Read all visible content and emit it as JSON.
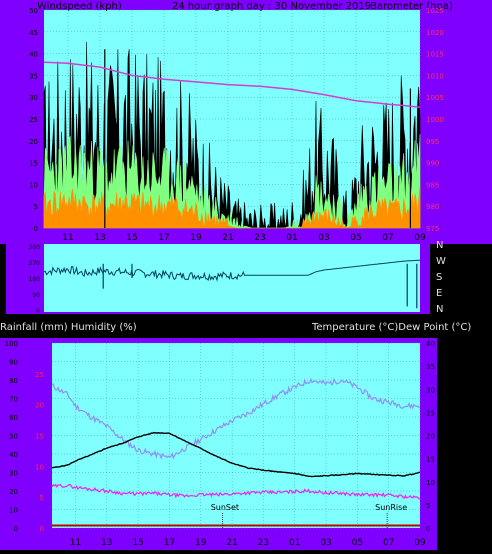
{
  "header": {
    "left": "Windspeed (kph)",
    "center": "24 hour graph day : 30 November 2019",
    "right": "Barometer (hpa)"
  },
  "lower_header": {
    "left": "Rainfall (mm)  Humidity (%)",
    "right": "Temperature (°C)Dew Point (°C)"
  },
  "colors": {
    "plot_bg": "#80FFFF",
    "frame": "#8000FF",
    "grid": "#40A0A0",
    "wind_gust": "#000000",
    "wind_avg": "#80FF80",
    "wind_low": "#FF9000",
    "barometer": "#D040D0",
    "direction": "#004060",
    "humidity": "#9090F0",
    "temperature": "#000000",
    "dewpoint": "#F020F0",
    "rain": "#C00000"
  },
  "chart_data": [
    {
      "type": "area",
      "x_ticks": [
        "11",
        "13",
        "15",
        "17",
        "19",
        "21",
        "23",
        "01",
        "03",
        "05",
        "07",
        "09"
      ],
      "y_left": {
        "ticks": [
          0,
          5,
          10,
          15,
          20,
          25,
          30,
          35,
          40,
          45,
          50
        ],
        "ylim": [
          0,
          50
        ]
      },
      "y_right": {
        "ticks": [
          975,
          980,
          985,
          990,
          995,
          1000,
          1005,
          1010,
          1015,
          1020,
          1025
        ],
        "ylim": [
          975,
          1025
        ]
      },
      "grid": true,
      "series": [
        {
          "key": "gust",
          "x": [
            9.5,
            10.5,
            11.5,
            12.5,
            13.5,
            14.5,
            15.5,
            16.5,
            17.5,
            18.5,
            19.5,
            20.5,
            21.5,
            22.5,
            23.5,
            24.5,
            25.5,
            26.5,
            27.5,
            28.5,
            29.5,
            30.5,
            31.5,
            32.5,
            33
          ],
          "values": [
            18,
            22,
            24,
            22,
            21,
            23,
            22,
            21,
            20,
            17,
            11,
            6,
            2,
            1,
            1,
            1,
            3,
            15,
            12,
            2,
            14,
            16,
            18,
            23,
            28
          ]
        },
        {
          "key": "avg",
          "x": [
            9.5,
            10.5,
            11.5,
            12.5,
            13.5,
            14.5,
            15.5,
            16.5,
            17.5,
            18.5,
            19.5,
            20.5,
            21.5,
            22.5,
            23.5,
            24.5,
            25.5,
            26.5,
            27.5,
            28.5,
            29.5,
            30.5,
            31.5,
            32.5,
            33
          ],
          "values": [
            12,
            13,
            14,
            13,
            12,
            13,
            12,
            12,
            11,
            10,
            6,
            3,
            1,
            0,
            0,
            0,
            1,
            8,
            6,
            1,
            8,
            9,
            10,
            12,
            15
          ]
        },
        {
          "key": "low",
          "x": [
            9.5,
            10.5,
            11.5,
            12.5,
            13.5,
            14.5,
            15.5,
            16.5,
            17.5,
            18.5,
            19.5,
            20.5,
            21.5,
            22.5,
            23.5,
            24.5,
            25.5,
            26.5,
            27.5,
            28.5,
            29.5,
            30.5,
            31.5,
            32.5,
            33
          ],
          "values": [
            5,
            6,
            6,
            5,
            5,
            6,
            5,
            5,
            5,
            4,
            3,
            1,
            0,
            0,
            0,
            0,
            0,
            3,
            2,
            0,
            3,
            4,
            4,
            5,
            6
          ]
        },
        {
          "key": "barometer",
          "x": [
            9.5,
            11,
            13,
            15,
            17,
            19,
            21,
            23,
            25,
            27,
            29,
            31,
            32,
            33
          ],
          "values": [
            1013,
            1012.8,
            1011.9,
            1010,
            1009.1,
            1008.5,
            1007.9,
            1007.5,
            1006.8,
            1005.6,
            1004.2,
            1003.4,
            1003.1,
            1002.7
          ]
        }
      ],
      "peaks": [
        {
          "x": 13.3,
          "y": 41
        },
        {
          "x": 32.4,
          "y": 32
        }
      ]
    },
    {
      "type": "line",
      "direction_labels": [
        "N",
        "W",
        "S",
        "E",
        "N"
      ],
      "y_ticks": [
        360,
        270,
        180,
        90,
        0
      ],
      "ylim": [
        0,
        360
      ],
      "series": [
        {
          "key": "direction",
          "x": [
            9.5,
            11,
            12,
            13,
            14,
            15,
            16,
            17,
            18,
            19,
            20,
            21,
            22,
            23,
            24,
            25,
            26,
            26.5,
            27,
            28,
            29,
            30,
            31,
            32,
            33
          ],
          "values": [
            215,
            230,
            205,
            220,
            215,
            210,
            205,
            200,
            190,
            195,
            190,
            195,
            195,
            195,
            195,
            195,
            195,
            215,
            225,
            235,
            245,
            255,
            265,
            275,
            280
          ]
        }
      ]
    },
    {
      "type": "line",
      "x_ticks": [
        "11",
        "13",
        "15",
        "17",
        "19",
        "21",
        "23",
        "01",
        "03",
        "05",
        "07",
        "09"
      ],
      "y_left": {
        "ticks": [
          0,
          10,
          20,
          30,
          40,
          50,
          60,
          70,
          80,
          90,
          100
        ],
        "ylim": [
          0,
          100
        ]
      },
      "y_left_rain": {
        "ticks": [
          0,
          5,
          10,
          15,
          20,
          25
        ],
        "ylim": [
          0,
          30
        ]
      },
      "y_right": {
        "ticks": [
          0,
          5,
          10,
          15,
          20,
          25,
          30,
          35,
          40
        ],
        "ylim": [
          0,
          40
        ]
      },
      "grid": true,
      "series": [
        {
          "key": "humidity",
          "x": [
            9.5,
            10.5,
            11,
            12,
            13,
            14,
            15,
            16,
            17,
            18,
            19,
            20,
            21,
            22,
            23,
            24,
            25,
            26,
            27,
            28,
            29,
            30,
            31,
            32,
            33
          ],
          "values": [
            77,
            72,
            66,
            60,
            55,
            48,
            42,
            40,
            38,
            43,
            48,
            53,
            58,
            62,
            67,
            72,
            76,
            80,
            78,
            80,
            76,
            70,
            68,
            66,
            66
          ]
        },
        {
          "key": "temperature",
          "x": [
            9.5,
            10.5,
            11,
            12,
            13,
            14,
            15,
            16,
            17,
            18,
            19,
            20,
            21,
            22,
            23,
            24,
            25,
            26,
            27,
            28,
            29,
            30,
            31,
            32,
            33
          ],
          "values": [
            13,
            13.6,
            14.5,
            15.8,
            17.3,
            18.3,
            19.7,
            20.6,
            20.5,
            18.8,
            17.2,
            15.5,
            14,
            13,
            12.5,
            12.1,
            11.8,
            11.1,
            11.3,
            11.5,
            11.8,
            11.6,
            11.4,
            11.3,
            12
          ]
        },
        {
          "key": "dewpoint",
          "x": [
            9.5,
            10.5,
            11,
            12,
            13,
            14,
            15,
            16,
            17,
            18,
            19,
            20,
            21,
            22,
            23,
            24,
            25,
            26,
            27,
            28,
            29,
            30,
            31,
            32,
            33
          ],
          "values": [
            9,
            9.2,
            8.8,
            8.4,
            8,
            7.5,
            7.4,
            7.5,
            7.2,
            6.9,
            7.2,
            7.2,
            7.4,
            7.6,
            7.7,
            7.7,
            7.9,
            8,
            7.6,
            7.5,
            7.2,
            7.2,
            7.1,
            6.8,
            6.5
          ]
        },
        {
          "key": "rain",
          "x": [
            9.5,
            33
          ],
          "values": [
            0.5,
            0.5
          ]
        }
      ],
      "annotations": [
        {
          "label": "SunSet",
          "x": 20.4
        },
        {
          "label": "SunRise",
          "x": 30.9
        }
      ]
    }
  ]
}
